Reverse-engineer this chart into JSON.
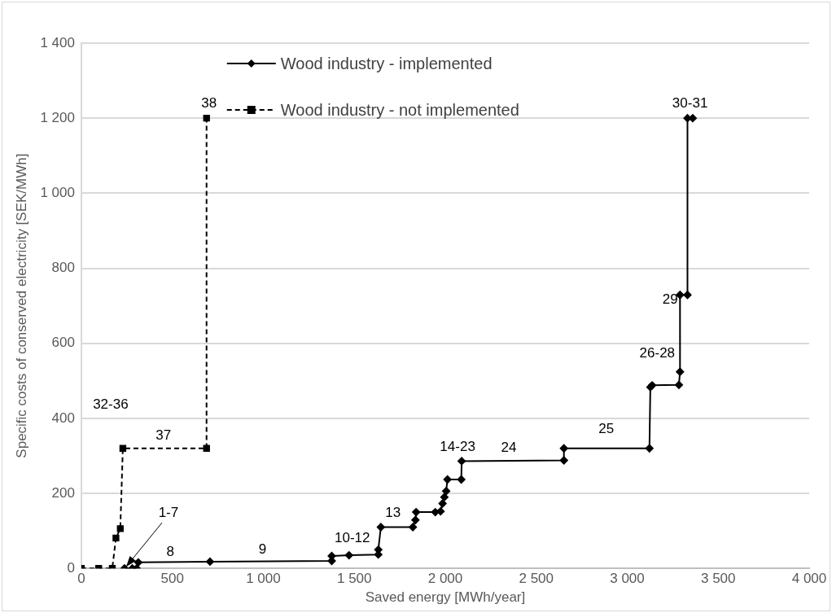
{
  "chart_data": {
    "type": "line",
    "xlabel": "Saved energy [MWh/year]",
    "ylabel": "Specific costs of conserved electricity [SEK/MWh]",
    "xlim": [
      0,
      4000
    ],
    "xticks": [
      {
        "value": 0,
        "label": "0"
      },
      {
        "value": 500,
        "label": "500"
      },
      {
        "value": 1000,
        "label": "1 000"
      },
      {
        "value": 1500,
        "label": "1 500"
      },
      {
        "value": 2000,
        "label": "2 000"
      },
      {
        "value": 2500,
        "label": "2 500"
      },
      {
        "value": 3000,
        "label": "3 000"
      },
      {
        "value": 3500,
        "label": "3 500"
      },
      {
        "value": 4000,
        "label": "4 000"
      }
    ],
    "ylim": [
      0,
      1400
    ],
    "yticks": [
      {
        "value": 0,
        "label": "0"
      },
      {
        "value": 200,
        "label": "200"
      },
      {
        "value": 400,
        "label": "400"
      },
      {
        "value": 600,
        "label": "600"
      },
      {
        "value": 800,
        "label": "800"
      },
      {
        "value": 1000,
        "label": "1 000"
      },
      {
        "value": 1200,
        "label": "1 200"
      },
      {
        "value": 1400,
        "label": "1 400"
      }
    ],
    "grid": "y",
    "legend": "top left",
    "series": [
      {
        "name": "Wood industry - implemented",
        "color": "#000000",
        "marker": "diamond",
        "line_style": "solid",
        "x": [
          237,
          280,
          304,
          313,
          707,
          1376,
          1376,
          1471,
          1632,
          1632,
          1646,
          1822,
          1836,
          1840,
          1945,
          1974,
          1985,
          1995,
          2005,
          2012,
          2088,
          2090,
          2652,
          2652,
          3122,
          3127,
          3137,
          3284,
          3290,
          3290,
          3331,
          3331,
          3360
        ],
        "values": [
          0,
          0,
          0,
          16,
          18,
          20,
          33,
          35,
          37,
          50,
          110,
          110,
          129,
          150,
          150,
          152,
          173,
          190,
          206,
          237,
          237,
          286,
          288,
          320,
          320,
          483,
          488,
          489,
          524,
          729,
          729,
          1200,
          1200
        ]
      },
      {
        "name": "Wood industry - not implemented",
        "color": "#000000",
        "marker": "square",
        "line_style": "dashed",
        "x": [
          0,
          95,
          170,
          190,
          214,
          228,
          688,
          688
        ],
        "values": [
          0,
          0,
          0,
          81,
          106,
          320,
          320,
          1200
        ]
      }
    ],
    "annotations": [
      {
        "text": "38",
        "x": 688,
        "y": 1200
      },
      {
        "text": "30-31",
        "x": 3345,
        "y": 1200
      },
      {
        "text": "29",
        "x": 3290,
        "y": 729
      },
      {
        "text": "26-28",
        "x": 3290,
        "y": 524
      },
      {
        "text": "25",
        "x": 2885,
        "y": 320
      },
      {
        "text": "24",
        "x": 2349,
        "y": 287
      },
      {
        "text": "14-23",
        "x": 2090,
        "y": 286
      },
      {
        "text": "13",
        "x": 1713,
        "y": 110
      },
      {
        "text": "10-12",
        "x": 1471,
        "y": 35
      },
      {
        "text": "9",
        "x": 996,
        "y": 19
      },
      {
        "text": "8",
        "x": 489,
        "y": 17
      },
      {
        "text": "1-7",
        "x": 237,
        "y": 0
      },
      {
        "text": "37",
        "x": 451,
        "y": 320
      },
      {
        "text": "32-36",
        "x": 228,
        "y": 320
      }
    ]
  }
}
